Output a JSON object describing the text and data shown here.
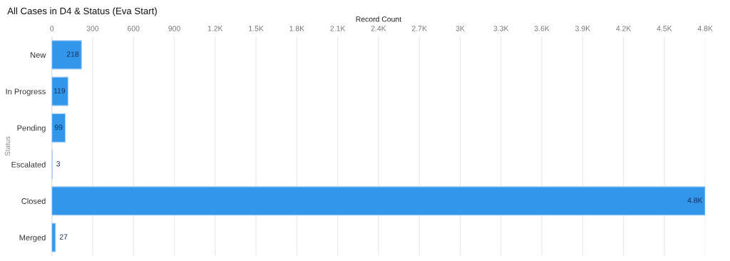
{
  "chart_data": {
    "type": "bar",
    "orientation": "horizontal",
    "title": "All Cases in D4 & Status (Eva Start)",
    "xlabel": "Record Count",
    "ylabel": "Status",
    "categories": [
      "New",
      "In Progress",
      "Pending",
      "Escalated",
      "Closed",
      "Merged"
    ],
    "values": [
      218,
      119,
      99,
      3,
      4800,
      27
    ],
    "value_labels": [
      "218",
      "119",
      "99",
      "3",
      "4.8K",
      "27"
    ],
    "color": "#3296ea",
    "xlim": [
      0,
      4800
    ],
    "xticks": [
      0,
      300,
      600,
      900,
      {
        "value": 1200,
        "label": "1.2K"
      },
      {
        "value": 1500,
        "label": "1.5K"
      },
      {
        "value": 1800,
        "label": "1.8K"
      },
      {
        "value": 2100,
        "label": "2.1K"
      },
      {
        "value": 2400,
        "label": "2.4K"
      },
      {
        "value": 2700,
        "label": "2.7K"
      },
      {
        "value": 3000,
        "label": "3K"
      },
      {
        "value": 3300,
        "label": "3.3K"
      },
      {
        "value": 3600,
        "label": "3.6K"
      },
      {
        "value": 3900,
        "label": "3.9K"
      },
      {
        "value": 4200,
        "label": "4.2K"
      },
      {
        "value": 4500,
        "label": "4.5K"
      },
      {
        "value": 4800,
        "label": "4.8K"
      }
    ],
    "grid": "x",
    "legend": false
  }
}
